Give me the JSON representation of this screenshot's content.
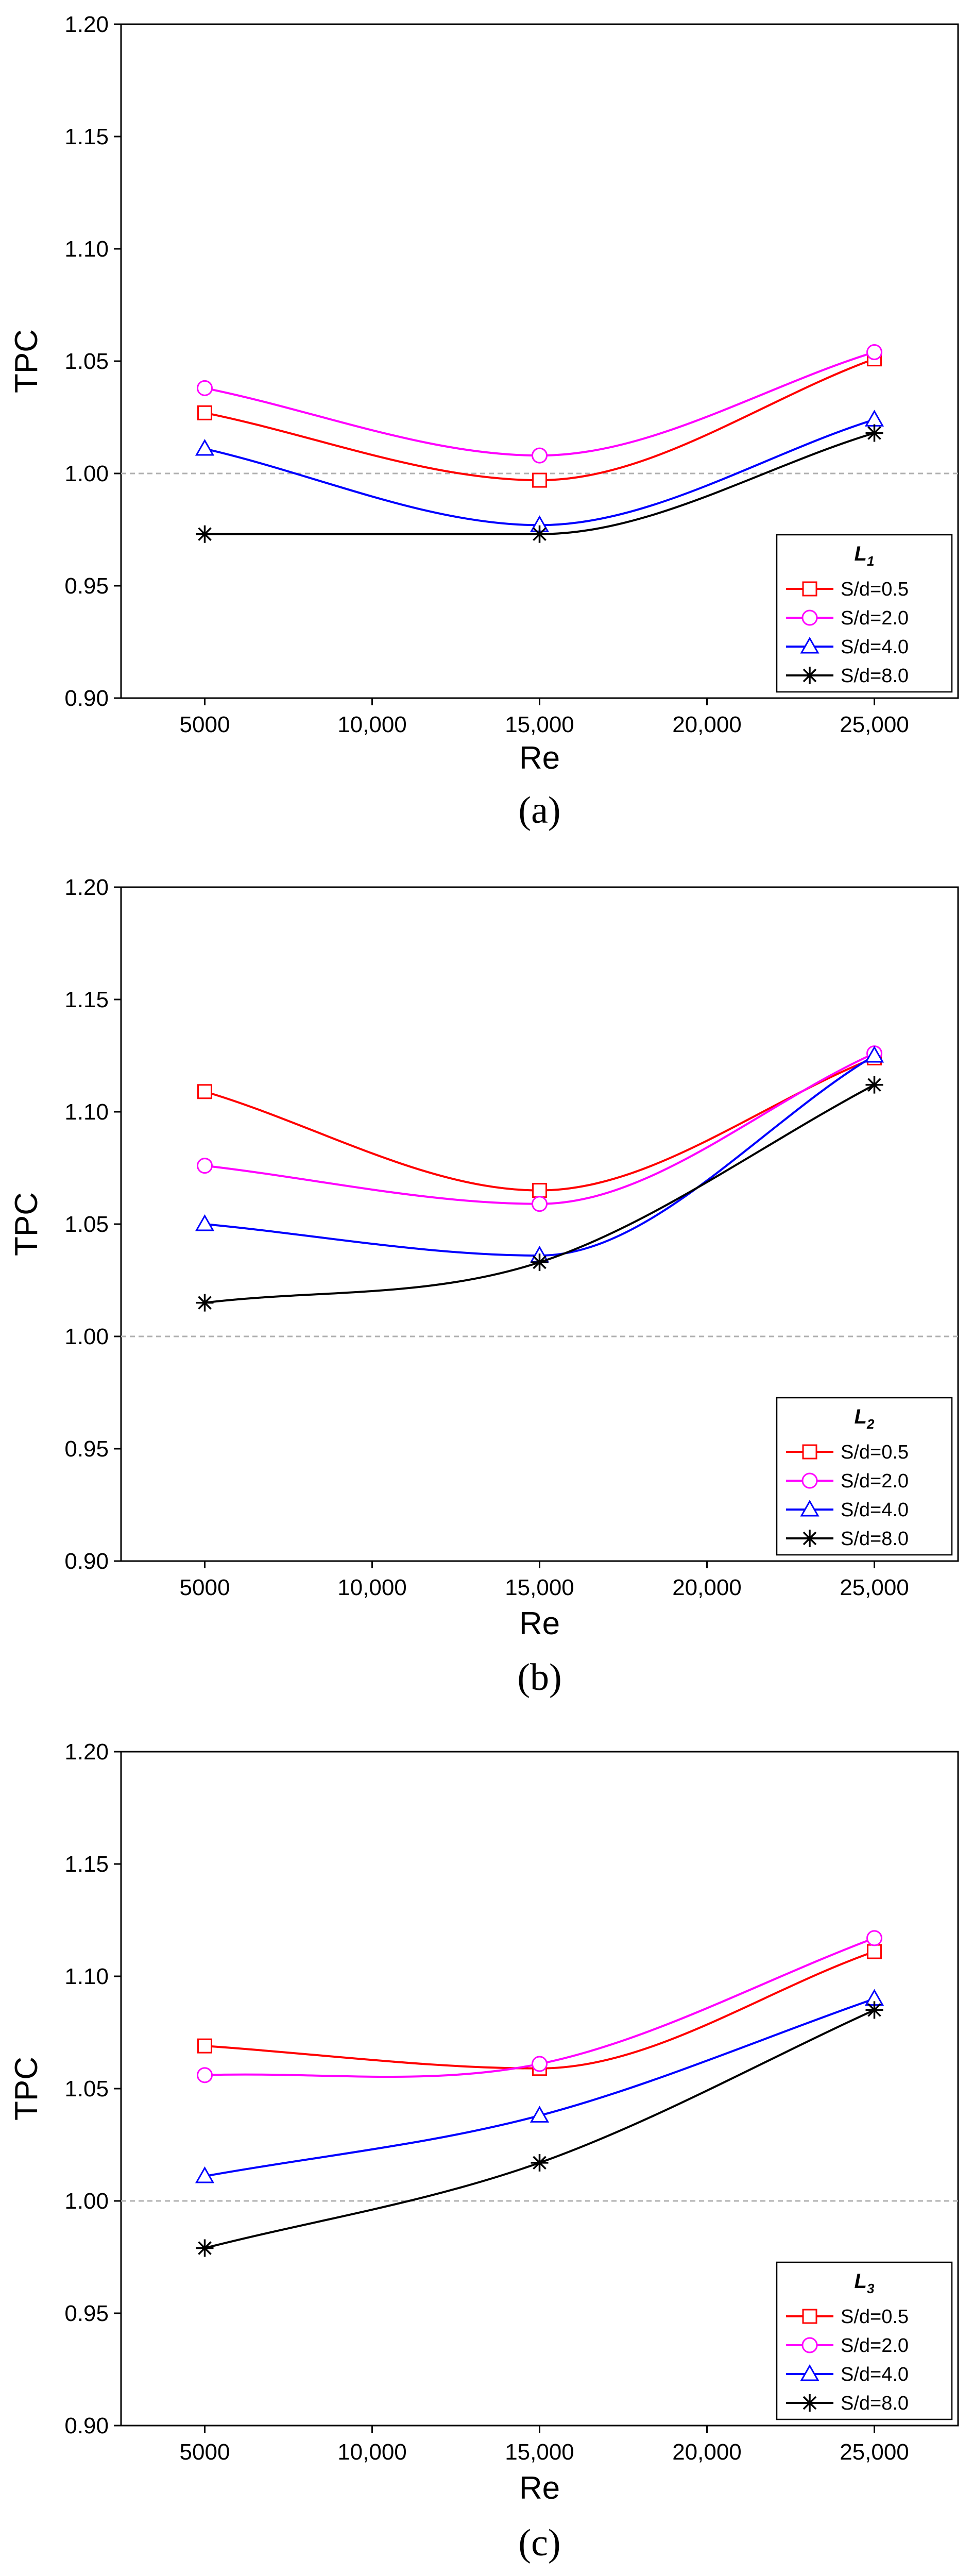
{
  "chart_data": [
    {
      "type": "line",
      "panel_label": "(a)",
      "legend_title": "L",
      "legend_title_subscript": "1",
      "xlabel": "Re",
      "ylabel": "TPC",
      "x": [
        5000,
        15000,
        25000
      ],
      "x_tick_labels": [
        "5000",
        "10,000",
        "15,000",
        "20,000",
        "25,000"
      ],
      "x_ticks": [
        5000,
        10000,
        15000,
        20000,
        25000
      ],
      "xlim": [
        2500,
        27500
      ],
      "ylim": [
        0.9,
        1.2
      ],
      "y_tick_labels": [
        "0.90",
        "0.95",
        "1.00",
        "1.05",
        "1.10",
        "1.15",
        "1.20"
      ],
      "y_ticks": [
        0.9,
        0.95,
        1.0,
        1.05,
        1.1,
        1.15,
        1.2
      ],
      "reference_line": 1.0,
      "legend_position": "bottom-right",
      "series": [
        {
          "name": "S/d=0.5",
          "color": "#ff0000",
          "marker": "square",
          "values": [
            1.027,
            0.997,
            1.051
          ]
        },
        {
          "name": "S/d=2.0",
          "color": "#ff00ff",
          "marker": "circle",
          "values": [
            1.038,
            1.008,
            1.054
          ]
        },
        {
          "name": "S/d=4.0",
          "color": "#0000ff",
          "marker": "triangle",
          "values": [
            1.011,
            0.977,
            1.024
          ]
        },
        {
          "name": "S/d=8.0",
          "color": "#000000",
          "marker": "star",
          "values": [
            0.973,
            0.973,
            1.018
          ]
        }
      ]
    },
    {
      "type": "line",
      "panel_label": "(b)",
      "legend_title": "L",
      "legend_title_subscript": "2",
      "xlabel": "Re",
      "ylabel": "TPC",
      "x": [
        5000,
        15000,
        25000
      ],
      "x_tick_labels": [
        "5000",
        "10,000",
        "15,000",
        "20,000",
        "25,000"
      ],
      "x_ticks": [
        5000,
        10000,
        15000,
        20000,
        25000
      ],
      "xlim": [
        2500,
        27500
      ],
      "ylim": [
        0.9,
        1.2
      ],
      "y_tick_labels": [
        "0.90",
        "0.95",
        "1.00",
        "1.05",
        "1.10",
        "1.15",
        "1.20"
      ],
      "y_ticks": [
        0.9,
        0.95,
        1.0,
        1.05,
        1.1,
        1.15,
        1.2
      ],
      "reference_line": 1.0,
      "legend_position": "bottom-right",
      "series": [
        {
          "name": "S/d=0.5",
          "color": "#ff0000",
          "marker": "square",
          "values": [
            1.109,
            1.065,
            1.124
          ]
        },
        {
          "name": "S/d=2.0",
          "color": "#ff00ff",
          "marker": "circle",
          "values": [
            1.076,
            1.059,
            1.126
          ]
        },
        {
          "name": "S/d=4.0",
          "color": "#0000ff",
          "marker": "triangle",
          "values": [
            1.05,
            1.036,
            1.125
          ]
        },
        {
          "name": "S/d=8.0",
          "color": "#000000",
          "marker": "star",
          "values": [
            1.015,
            1.033,
            1.112
          ]
        }
      ]
    },
    {
      "type": "line",
      "panel_label": "(c)",
      "legend_title": "L",
      "legend_title_subscript": "3",
      "xlabel": "Re",
      "ylabel": "TPC",
      "x": [
        5000,
        15000,
        25000
      ],
      "x_tick_labels": [
        "5000",
        "10,000",
        "15,000",
        "20,000",
        "25,000"
      ],
      "x_ticks": [
        5000,
        10000,
        15000,
        20000,
        25000
      ],
      "xlim": [
        2500,
        27500
      ],
      "ylim": [
        0.9,
        1.2
      ],
      "y_tick_labels": [
        "0.90",
        "0.95",
        "1.00",
        "1.05",
        "1.10",
        "1.15",
        "1.20"
      ],
      "y_ticks": [
        0.9,
        0.95,
        1.0,
        1.05,
        1.1,
        1.15,
        1.2
      ],
      "reference_line": 1.0,
      "legend_position": "bottom-right",
      "series": [
        {
          "name": "S/d=0.5",
          "color": "#ff0000",
          "marker": "square",
          "values": [
            1.069,
            1.059,
            1.111
          ]
        },
        {
          "name": "S/d=2.0",
          "color": "#ff00ff",
          "marker": "circle",
          "values": [
            1.056,
            1.061,
            1.117
          ]
        },
        {
          "name": "S/d=4.0",
          "color": "#0000ff",
          "marker": "triangle",
          "values": [
            1.011,
            1.038,
            1.09
          ]
        },
        {
          "name": "S/d=8.0",
          "color": "#000000",
          "marker": "star",
          "values": [
            0.979,
            1.017,
            1.085
          ]
        }
      ]
    }
  ]
}
